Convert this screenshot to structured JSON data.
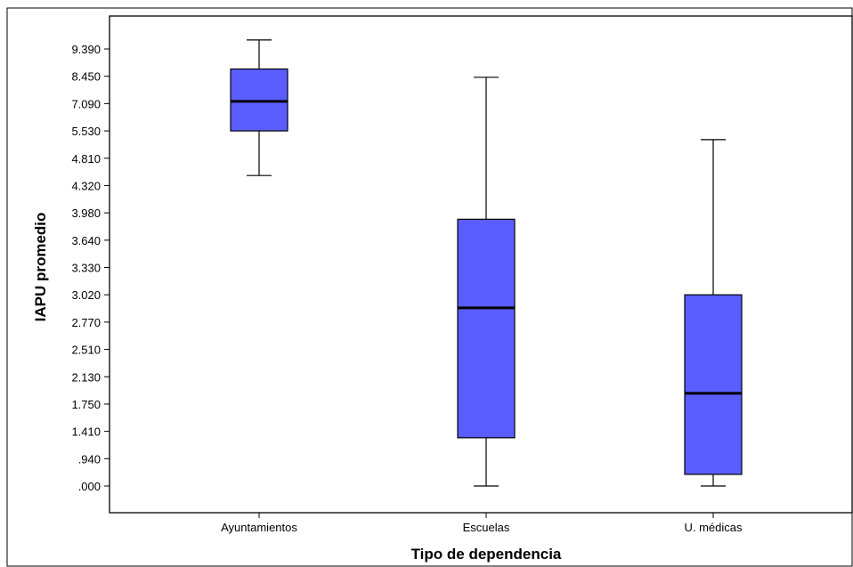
{
  "chart_data": {
    "type": "boxplot",
    "xlabel": "Tipo de dependencia",
    "ylabel": "IAPU promedio",
    "y_ticks": [
      ".000",
      ".940",
      "1.410",
      "1.750",
      "2.130",
      "2.510",
      "2.770",
      "3.020",
      "3.330",
      "3.640",
      "3.980",
      "4.320",
      "4.810",
      "5.530",
      "7.090",
      "8.450",
      "9.390"
    ],
    "categories": [
      "Ayuntamientos",
      "Escuelas",
      "U.  médicas"
    ],
    "boxes": [
      {
        "category": "Ayuntamientos",
        "min": 4.5,
        "q1": 5.53,
        "median": 7.2,
        "q3": 8.7,
        "max": 9.7
      },
      {
        "category": "Escuelas",
        "min": 0.0,
        "q1": 1.3,
        "median": 2.9,
        "q3": 3.9,
        "max": 8.4
      },
      {
        "category": "U.  médicas",
        "min": 0.0,
        "q1": 0.4,
        "median": 1.9,
        "q3": 3.02,
        "max": 5.3
      }
    ],
    "box_color": "#5b5eff",
    "grid": false,
    "y_scale": "categorical (labels evenly spaced)"
  }
}
